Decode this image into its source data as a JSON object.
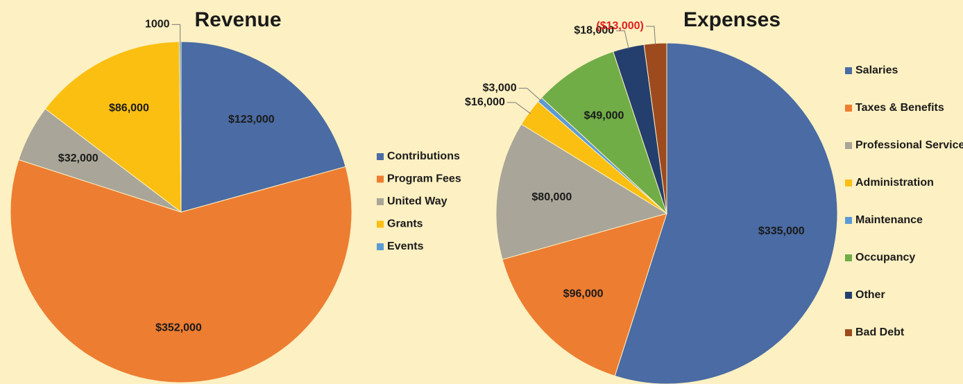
{
  "chart_data": [
    {
      "type": "pie",
      "title": "Revenue",
      "categories": [
        "Contributions",
        "Program Fees",
        "United Way",
        "Grants",
        "Events"
      ],
      "values": [
        123000,
        352000,
        32000,
        86000,
        1000
      ],
      "value_labels": [
        "$123,000",
        "$352,000",
        "$32,000",
        "$86,000",
        "1000"
      ],
      "colors": [
        "#4a6ba3",
        "#ed7d31",
        "#a9a598",
        "#fbbf12",
        "#5b9bd5"
      ],
      "legend": "right"
    },
    {
      "type": "pie",
      "title": "Expenses",
      "categories": [
        "Salaries",
        "Taxes & Benefits",
        "Professional Services",
        "Administration",
        "Maintenance",
        "Occupancy",
        "Other",
        "Bad Debt"
      ],
      "values": [
        335000,
        96000,
        80000,
        16000,
        3000,
        49000,
        18000,
        13000
      ],
      "value_labels": [
        "$335,000",
        "$96,000",
        "$80,000",
        "$16,000",
        "$3,000",
        "$49,000",
        "$18,000",
        "($13,000)"
      ],
      "value_label_colors": [
        "#1a1a1a",
        "#1a1a1a",
        "#1a1a1a",
        "#1a1a1a",
        "#1a1a1a",
        "#1a1a1a",
        "#1a1a1a",
        "#e02020"
      ],
      "colors": [
        "#4a6ba3",
        "#ed7d31",
        "#a9a598",
        "#fbbf12",
        "#5b9bd5",
        "#70ad47",
        "#243f6e",
        "#9e4a1f"
      ],
      "legend": "right"
    }
  ]
}
